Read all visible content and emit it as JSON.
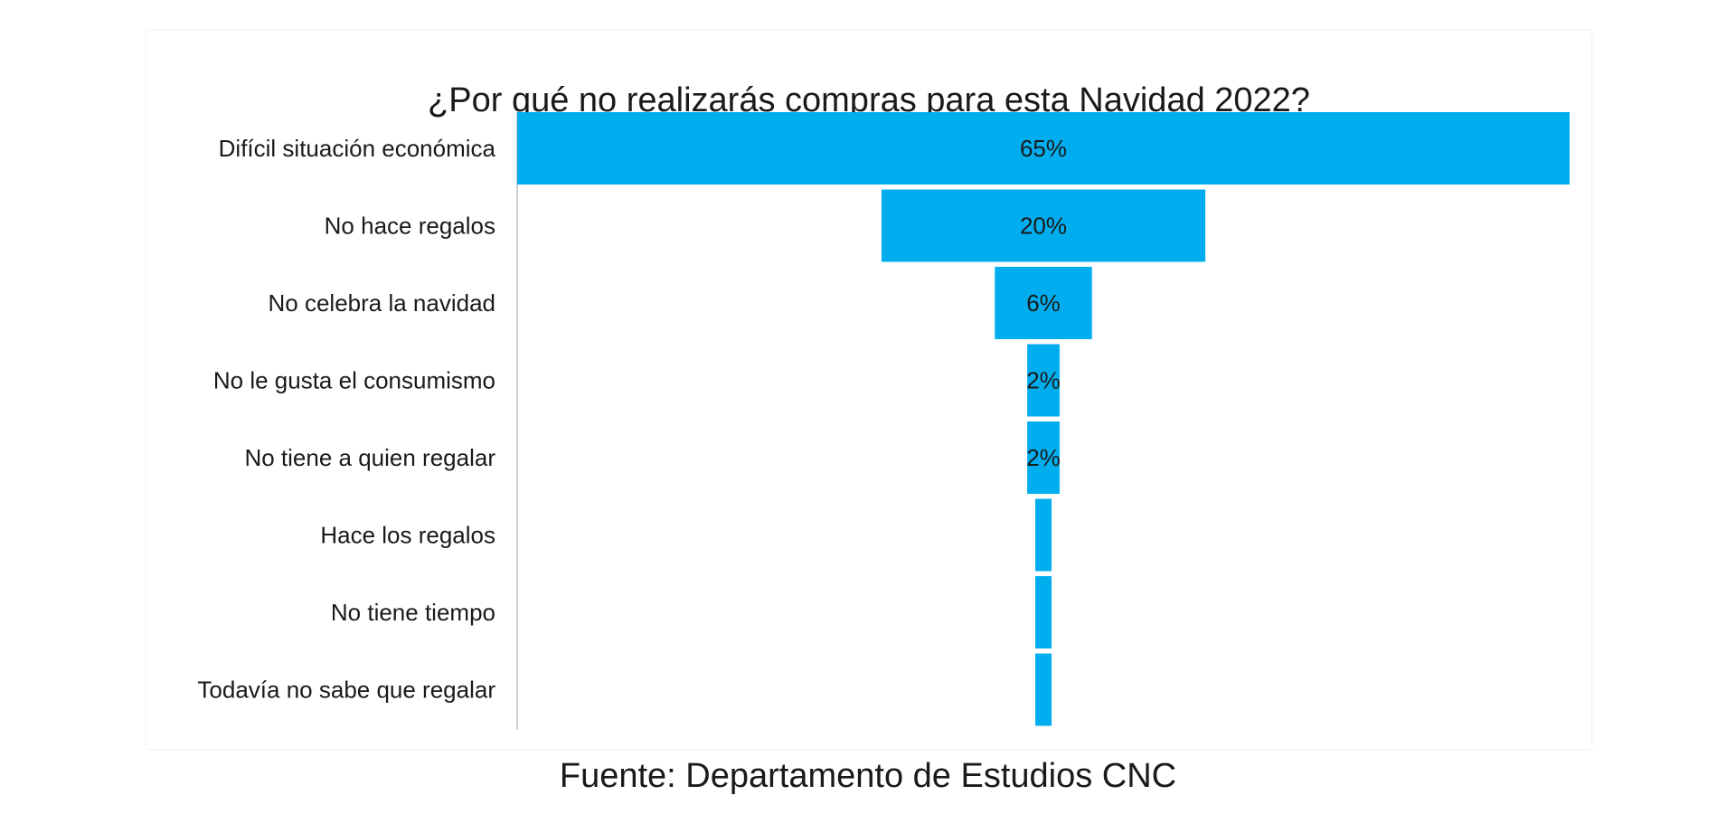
{
  "chart_data": {
    "type": "bar",
    "variant": "funnel",
    "title": "¿Por qué no realizarás compras para esta Navidad 2022?",
    "categories": [
      "Difícil situación económica",
      "No hace regalos",
      "No celebra la navidad",
      "No le gusta el consumismo",
      "No tiene a quien regalar",
      "Hace los regalos",
      "No tiene tiempo",
      "Todavía no sabe que regalar"
    ],
    "values": [
      65,
      20,
      6,
      2,
      2,
      1,
      1,
      1
    ],
    "labels": [
      "65%",
      "20%",
      "6%",
      "2%",
      "2%",
      "",
      "",
      ""
    ],
    "bar_color": "#00aeef",
    "grid": false,
    "legend": "none"
  },
  "source": "Fuente: Departamento de Estudios CNC"
}
